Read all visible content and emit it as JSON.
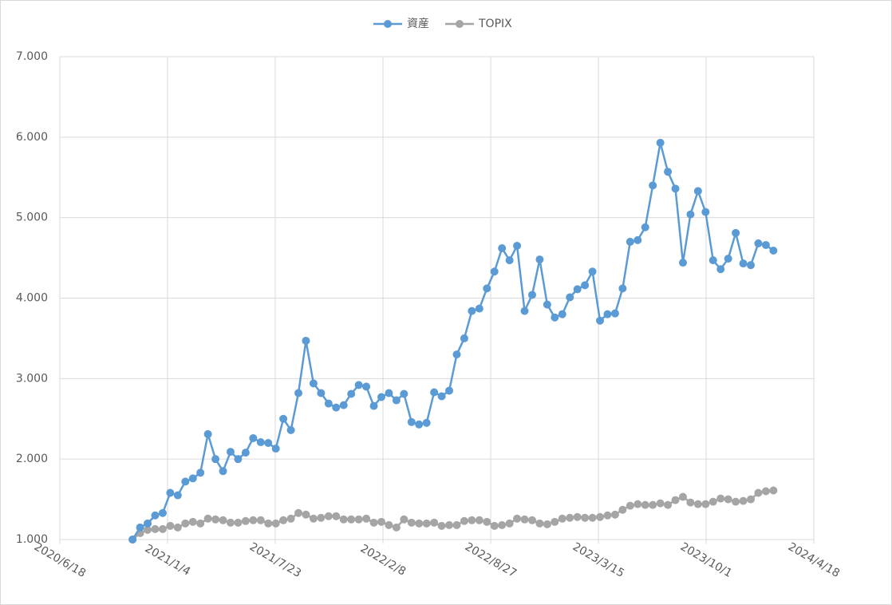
{
  "chart_data": {
    "type": "line",
    "x": [
      "2020/10/31",
      "2020/11/14",
      "2020/11/28",
      "2020/12/12",
      "2020/12/26",
      "2021/1/9",
      "2021/1/23",
      "2021/2/6",
      "2021/2/20",
      "2021/3/6",
      "2021/3/20",
      "2021/4/3",
      "2021/4/17",
      "2021/5/1",
      "2021/5/15",
      "2021/5/29",
      "2021/6/12",
      "2021/6/26",
      "2021/7/10",
      "2021/7/24",
      "2021/8/7",
      "2021/8/21",
      "2021/9/4",
      "2021/9/18",
      "2021/10/2",
      "2021/10/16",
      "2021/10/30",
      "2021/11/13",
      "2021/11/27",
      "2021/12/11",
      "2021/12/25",
      "2022/1/8",
      "2022/1/22",
      "2022/2/5",
      "2022/2/19",
      "2022/3/5",
      "2022/3/19",
      "2022/4/2",
      "2022/4/16",
      "2022/4/30",
      "2022/5/14",
      "2022/5/28",
      "2022/6/11",
      "2022/6/25",
      "2022/7/9",
      "2022/7/23",
      "2022/8/6",
      "2022/8/20",
      "2022/9/3",
      "2022/9/17",
      "2022/10/1",
      "2022/10/15",
      "2022/10/29",
      "2022/11/12",
      "2022/11/26",
      "2022/12/10",
      "2022/12/24",
      "2023/1/7",
      "2023/1/21",
      "2023/2/4",
      "2023/2/18",
      "2023/3/4",
      "2023/3/18",
      "2023/4/1",
      "2023/4/15",
      "2023/4/29",
      "2023/5/13",
      "2023/5/27",
      "2023/6/10",
      "2023/6/24",
      "2023/7/8",
      "2023/7/22",
      "2023/8/5",
      "2023/8/19",
      "2023/9/2",
      "2023/9/16",
      "2023/9/30",
      "2023/10/14",
      "2023/10/28",
      "2023/11/11",
      "2023/11/25",
      "2023/12/9",
      "2023/12/23",
      "2024/1/6",
      "2024/1/20",
      "2024/2/3"
    ],
    "series": [
      {
        "name": "資産",
        "color": "#5b9bd5",
        "values": [
          1.0,
          1.15,
          1.2,
          1.3,
          1.33,
          1.58,
          1.55,
          1.72,
          1.76,
          1.83,
          2.31,
          2.0,
          1.85,
          2.09,
          2.0,
          2.08,
          2.26,
          2.21,
          2.2,
          2.13,
          2.5,
          2.36,
          2.82,
          3.47,
          2.94,
          2.82,
          2.69,
          2.64,
          2.67,
          2.81,
          2.92,
          2.9,
          2.66,
          2.77,
          2.82,
          2.73,
          2.81,
          2.46,
          2.43,
          2.45,
          2.83,
          2.78,
          2.85,
          3.3,
          3.5,
          3.84,
          3.87,
          4.12,
          4.33,
          4.62,
          4.47,
          4.65,
          3.84,
          4.04,
          4.48,
          3.92,
          3.76,
          3.8,
          4.01,
          4.11,
          4.16,
          4.33,
          3.72,
          3.8,
          3.81,
          4.12,
          4.7,
          4.72,
          4.88,
          5.4,
          5.93,
          5.57,
          5.36,
          4.44,
          5.04,
          5.33,
          5.07,
          4.47,
          4.36,
          4.49,
          4.81,
          4.43,
          4.41,
          4.68,
          4.66,
          4.59
        ]
      },
      {
        "name": "TOPIX",
        "color": "#a5a5a5",
        "values": [
          1.0,
          1.08,
          1.12,
          1.13,
          1.13,
          1.17,
          1.15,
          1.2,
          1.22,
          1.2,
          1.26,
          1.25,
          1.24,
          1.21,
          1.21,
          1.23,
          1.24,
          1.24,
          1.2,
          1.2,
          1.24,
          1.26,
          1.33,
          1.31,
          1.26,
          1.27,
          1.29,
          1.29,
          1.25,
          1.25,
          1.25,
          1.26,
          1.21,
          1.22,
          1.18,
          1.15,
          1.25,
          1.21,
          1.2,
          1.2,
          1.21,
          1.17,
          1.18,
          1.18,
          1.23,
          1.24,
          1.24,
          1.22,
          1.17,
          1.18,
          1.2,
          1.26,
          1.25,
          1.24,
          1.2,
          1.19,
          1.22,
          1.26,
          1.27,
          1.28,
          1.27,
          1.27,
          1.28,
          1.3,
          1.31,
          1.37,
          1.42,
          1.44,
          1.43,
          1.43,
          1.45,
          1.43,
          1.49,
          1.53,
          1.46,
          1.44,
          1.44,
          1.47,
          1.51,
          1.5,
          1.47,
          1.48,
          1.5,
          1.58,
          1.6,
          1.61
        ]
      }
    ],
    "xlim": [
      "2020/6/18",
      "2024/4/18"
    ],
    "xticks": [
      "2020/6/18",
      "2021/1/4",
      "2021/7/23",
      "2022/2/8",
      "2022/8/27",
      "2023/3/15",
      "2023/10/1",
      "2024/4/18"
    ],
    "ylim": [
      1,
      7
    ],
    "yticks": [
      {
        "value": 1,
        "label": "1.000"
      },
      {
        "value": 2,
        "label": "2.000"
      },
      {
        "value": 3,
        "label": "3.000"
      },
      {
        "value": 4,
        "label": "4.000"
      },
      {
        "value": 5,
        "label": "5.000"
      },
      {
        "value": 6,
        "label": "6.000"
      },
      {
        "value": 7,
        "label": "7.000"
      }
    ],
    "grid": true,
    "legend": "top"
  }
}
